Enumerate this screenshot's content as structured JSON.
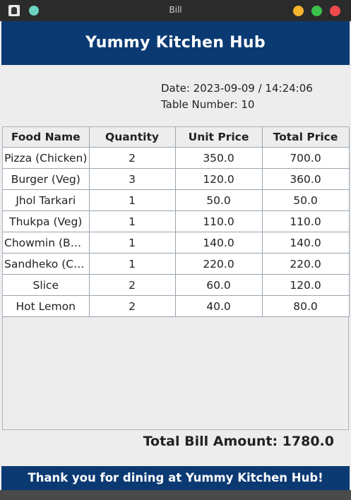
{
  "window": {
    "title": "Bill",
    "accent": "#0b3a73"
  },
  "header": {
    "title": "Yummy Kitchen Hub"
  },
  "info": {
    "date": "Date: 2023-09-09 / 14:24:06",
    "table_number": "Table Number: 10"
  },
  "table": {
    "columns": [
      "Food Name",
      "Quantity",
      "Unit Price",
      "Total Price"
    ],
    "rows": [
      [
        "Pizza (Chicken)",
        "2",
        "350.0",
        "700.0"
      ],
      [
        "Burger (Veg)",
        "3",
        "120.0",
        "360.0"
      ],
      [
        "Jhol Tarkari",
        "1",
        "50.0",
        "50.0"
      ],
      [
        "Thukpa (Veg)",
        "1",
        "110.0",
        "110.0"
      ],
      [
        "Chowmin (Buff)",
        "1",
        "140.0",
        "140.0"
      ],
      [
        "Sandheko (Ch...",
        "1",
        "220.0",
        "220.0"
      ],
      [
        "Slice",
        "2",
        "60.0",
        "120.0"
      ],
      [
        "Hot Lemon",
        "2",
        "40.0",
        "80.0"
      ]
    ]
  },
  "summary": {
    "total": "Total Bill Amount: 1780.0"
  },
  "footer": {
    "message": "Thank you for dining at Yummy Kitchen Hub!"
  }
}
